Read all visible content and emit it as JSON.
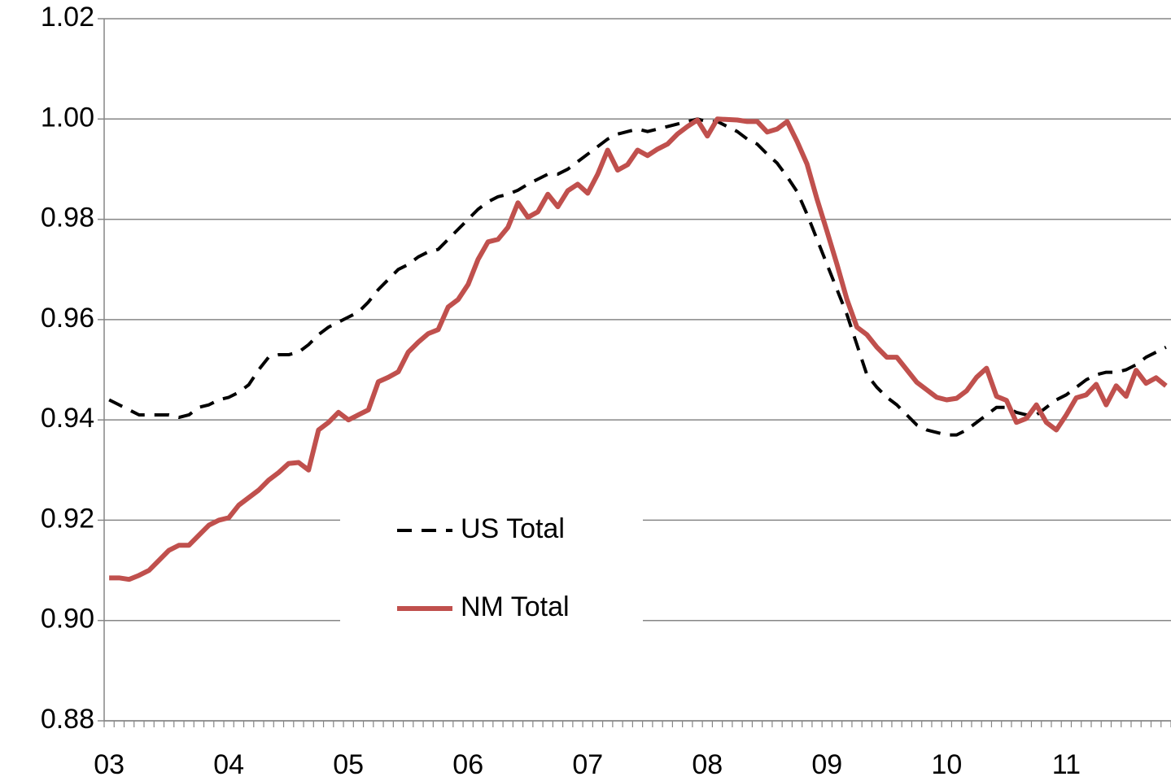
{
  "chart_data": {
    "type": "line",
    "categories": [
      "03",
      null,
      null,
      null,
      null,
      null,
      null,
      null,
      null,
      null,
      null,
      null,
      "04",
      null,
      null,
      null,
      null,
      null,
      null,
      null,
      null,
      null,
      null,
      null,
      "05",
      null,
      null,
      null,
      null,
      null,
      null,
      null,
      null,
      null,
      null,
      null,
      "06",
      null,
      null,
      null,
      null,
      null,
      null,
      null,
      null,
      null,
      null,
      null,
      "07",
      null,
      null,
      null,
      null,
      null,
      null,
      null,
      null,
      null,
      null,
      null,
      "08",
      null,
      null,
      null,
      null,
      null,
      null,
      null,
      null,
      null,
      null,
      null,
      "09",
      null,
      null,
      null,
      null,
      null,
      null,
      null,
      null,
      null,
      null,
      null,
      "10",
      null,
      null,
      null,
      null,
      null,
      null,
      null,
      null,
      null,
      null,
      null,
      "11",
      null,
      null,
      null,
      null,
      null,
      null,
      null,
      null,
      null,
      null
    ],
    "series": [
      {
        "name": "US Total",
        "color": "#000000",
        "dashed": true,
        "values": [
          0.944,
          0.943,
          0.942,
          0.941,
          0.941,
          0.941,
          0.941,
          0.9405,
          0.941,
          0.9425,
          0.943,
          0.944,
          0.9445,
          0.9455,
          0.947,
          0.95,
          0.9525,
          0.953,
          0.953,
          0.9535,
          0.955,
          0.957,
          0.9585,
          0.9595,
          0.9605,
          0.9615,
          0.9635,
          0.966,
          0.968,
          0.97,
          0.971,
          0.9725,
          0.9735,
          0.974,
          0.976,
          0.978,
          0.98,
          0.982,
          0.9835,
          0.9845,
          0.985,
          0.9858,
          0.987,
          0.988,
          0.989,
          0.989,
          0.99,
          0.9915,
          0.993,
          0.9945,
          0.996,
          0.997,
          0.9975,
          0.998,
          0.9975,
          0.998,
          0.9985,
          0.999,
          0.9995,
          1.0,
          0.9995,
          0.9995,
          0.9985,
          0.9975,
          0.996,
          0.995,
          0.993,
          0.9912,
          0.9885,
          0.9855,
          0.981,
          0.976,
          0.971,
          0.966,
          0.961,
          0.955,
          0.949,
          0.9465,
          0.9445,
          0.943,
          0.941,
          0.939,
          0.938,
          0.9375,
          0.937,
          0.937,
          0.938,
          0.9395,
          0.941,
          0.9425,
          0.9425,
          0.9415,
          0.941,
          0.941,
          0.9425,
          0.944,
          0.945,
          0.9465,
          0.948,
          0.949,
          0.9495,
          0.9495,
          0.95,
          0.951,
          0.9525,
          0.9535,
          0.9545
        ]
      },
      {
        "name": "NM Total",
        "color": "#c0504d",
        "dashed": false,
        "values": [
          0.9085,
          0.9085,
          0.9082,
          0.909,
          0.91,
          0.912,
          0.914,
          0.915,
          0.915,
          0.917,
          0.919,
          0.92,
          0.9205,
          0.923,
          0.9245,
          0.926,
          0.928,
          0.9295,
          0.9313,
          0.9315,
          0.93,
          0.938,
          0.9395,
          0.9415,
          0.94,
          0.941,
          0.942,
          0.9476,
          0.9485,
          0.9496,
          0.9535,
          0.9555,
          0.9572,
          0.958,
          0.9625,
          0.964,
          0.967,
          0.972,
          0.9755,
          0.976,
          0.9784,
          0.9833,
          0.9804,
          0.9815,
          0.985,
          0.9825,
          0.9857,
          0.987,
          0.9852,
          0.989,
          0.9938,
          0.9898,
          0.9909,
          0.9938,
          0.9927,
          0.994,
          0.995,
          0.997,
          0.9985,
          0.9998,
          0.9966,
          1.0,
          0.9999,
          0.9998,
          0.9995,
          0.9995,
          0.9974,
          0.998,
          0.9995,
          0.9955,
          0.991,
          0.984,
          0.9776,
          0.971,
          0.964,
          0.9585,
          0.957,
          0.9545,
          0.9525,
          0.9525,
          0.95,
          0.9475,
          0.946,
          0.9445,
          0.944,
          0.9443,
          0.9458,
          0.9485,
          0.9503,
          0.9447,
          0.9439,
          0.9395,
          0.9403,
          0.943,
          0.9395,
          0.938,
          0.941,
          0.9444,
          0.945,
          0.9471,
          0.943,
          0.9468,
          0.9447,
          0.9499,
          0.9473,
          0.9484,
          0.9468
        ]
      }
    ],
    "ylim": [
      0.88,
      1.02
    ],
    "yticks": [
      0.88,
      {
        "value": 0.9,
        "label": "0.90"
      },
      0.92,
      0.94,
      0.96,
      0.98,
      {
        "value": 1.0,
        "label": "1.00"
      },
      1.02
    ],
    "grid": true,
    "legend": "lower center"
  }
}
